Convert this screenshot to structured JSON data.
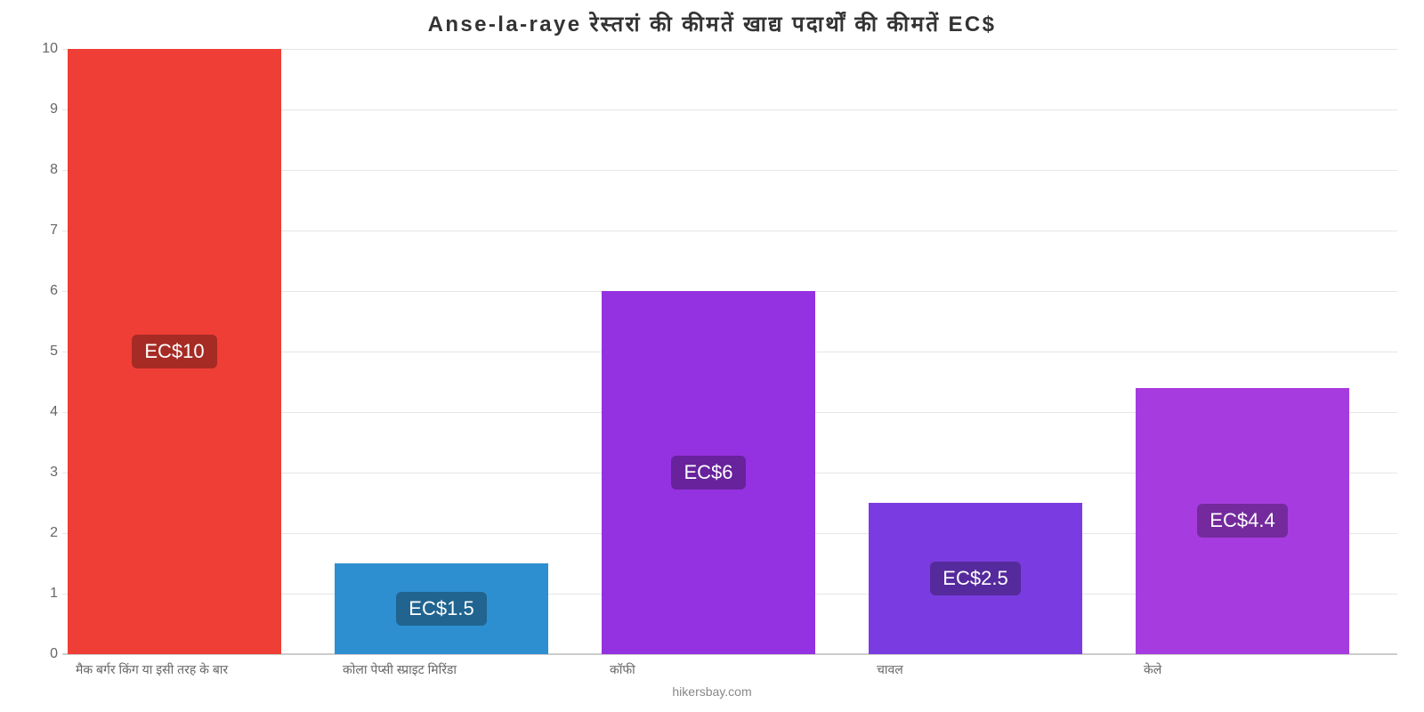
{
  "chart": {
    "type": "bar",
    "title": "Anse-la-raye रेस्तरां   की   कीमतें   खाद्य   पदार्थों   की   कीमतें   EC$",
    "title_fontsize": 24,
    "title_color": "#333333",
    "background_color": "#ffffff",
    "grid_color": "#e6e6e6",
    "baseline_color": "#cccccc",
    "axis_label_color": "#666666",
    "tick_fontsize": 16,
    "xlabel_fontsize": 14,
    "ylim": [
      0,
      10
    ],
    "ytick_step": 1,
    "yticks": [
      "0",
      "1",
      "2",
      "3",
      "4",
      "5",
      "6",
      "7",
      "8",
      "9",
      "10"
    ],
    "bar_width_pct": 80,
    "categories": [
      "मैक बर्गर किंग या इसी तरह के बार",
      "कोला पेप्सी स्प्राइट मिरिंडा",
      "कॉफी",
      "चावल",
      "केले"
    ],
    "values": [
      10,
      1.5,
      6,
      2.5,
      4.4
    ],
    "value_labels": [
      "EC$10",
      "EC$1.5",
      "EC$6",
      "EC$2.5",
      "EC$4.4"
    ],
    "bar_colors": [
      "#ef3e36",
      "#2e8fd0",
      "#9431e0",
      "#7a3ce0",
      "#a63ce0"
    ],
    "badge_colors": [
      "#a62b25",
      "#20648f",
      "#67229c",
      "#552a9c",
      "#742a9c"
    ],
    "badge_fontsize": 22,
    "attribution": "hikersbay.com",
    "attribution_color": "#888888",
    "attribution_fontsize": 14
  }
}
